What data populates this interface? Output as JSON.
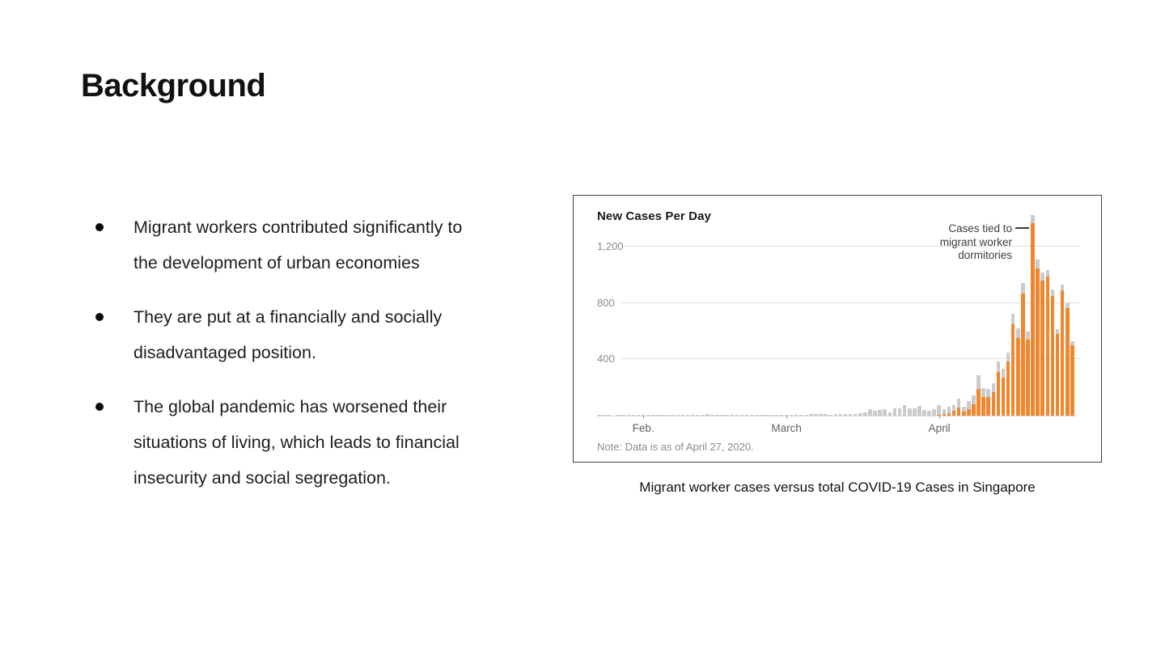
{
  "slide": {
    "title": "Background",
    "bullets": [
      {
        "text": "Migrant workers contributed significantly to the development of urban economies",
        "lines": [
          "Migrant workers contributed significantly to",
          "the development of urban economies"
        ]
      },
      {
        "text": "They are put at a financially and socially disadvantaged position.",
        "lines": [
          "They are put at a financially and socially",
          "disadvantaged position."
        ]
      },
      {
        "text": "The global pandemic has worsened their situations of living, which leads to financial insecurity and social segregation.",
        "lines": [
          "The global pandemic has worsened their",
          "situations of living, which leads to financial",
          "insecurity and social segregation."
        ]
      }
    ],
    "figure_caption": "Migrant worker cases versus total COVID-19 Cases in Singapore"
  },
  "chart_data": {
    "type": "bar",
    "stacked": true,
    "title": "New Cases Per Day",
    "note": "Note: Data is as of April 27, 2020.",
    "annotation": {
      "text": "Cases tied to migrant worker dormitories",
      "lines": [
        "Cases tied to",
        "migrant worker",
        "dormitories"
      ],
      "target_bar_index": 87
    },
    "x_tick_labels": [
      "Feb.",
      "March",
      "April"
    ],
    "x_tick_bar_index": [
      9,
      38,
      69
    ],
    "y_tick_labels": [
      "1,200",
      "800",
      "400"
    ],
    "y_tick_values": [
      1200,
      800,
      400
    ],
    "ylim": [
      0,
      1450
    ],
    "grid": true,
    "colors": {
      "migrant_dormitory": "#f0862d",
      "other": "#cbcbcb"
    },
    "series": [
      {
        "name": "Cases tied to migrant worker dormitories",
        "color": "#f0862d",
        "values": [
          0,
          0,
          0,
          0,
          0,
          0,
          0,
          0,
          0,
          0,
          0,
          0,
          0,
          0,
          0,
          0,
          0,
          0,
          0,
          0,
          0,
          0,
          0,
          0,
          0,
          0,
          0,
          0,
          0,
          0,
          0,
          0,
          0,
          0,
          0,
          0,
          0,
          0,
          0,
          0,
          0,
          0,
          0,
          0,
          0,
          0,
          0,
          0,
          0,
          0,
          0,
          0,
          0,
          0,
          0,
          0,
          0,
          0,
          0,
          0,
          0,
          0,
          0,
          0,
          0,
          0,
          0,
          0,
          0,
          5,
          9,
          20,
          35,
          60,
          30,
          45,
          80,
          190,
          130,
          130,
          165,
          310,
          270,
          385,
          650,
          555,
          870,
          540,
          1369,
          1050,
          960,
          990,
          850,
          580,
          893,
          765,
          500
        ]
      },
      {
        "name": "Other cases",
        "color": "#cbcbcb",
        "values": [
          1,
          2,
          1,
          0,
          1,
          2,
          3,
          3,
          3,
          2,
          1,
          1,
          6,
          4,
          2,
          3,
          7,
          3,
          2,
          2,
          3,
          8,
          9,
          5,
          3,
          2,
          4,
          3,
          1,
          1,
          3,
          1,
          1,
          1,
          2,
          3,
          2,
          4,
          4,
          2,
          2,
          2,
          5,
          13,
          9,
          12,
          10,
          6,
          12,
          9,
          13,
          12,
          14,
          17,
          23,
          47,
          32,
          40,
          47,
          23,
          54,
          49,
          73,
          52,
          49,
          70,
          42,
          35,
          47,
          69,
          40,
          45,
          40,
          60,
          36,
          61,
          62,
          97,
          68,
          61,
          68,
          76,
          64,
          62,
          78,
          68,
          72,
          56,
          57,
          61,
          56,
          47,
          47,
          38,
          38,
          34,
          28
        ]
      }
    ],
    "totals": [
      1,
      2,
      1,
      0,
      1,
      2,
      3,
      3,
      3,
      2,
      1,
      1,
      6,
      4,
      2,
      3,
      7,
      3,
      2,
      2,
      3,
      8,
      9,
      5,
      3,
      2,
      4,
      3,
      1,
      1,
      3,
      1,
      1,
      1,
      2,
      3,
      2,
      4,
      4,
      2,
      2,
      2,
      5,
      13,
      9,
      12,
      10,
      6,
      12,
      9,
      13,
      12,
      14,
      17,
      23,
      47,
      32,
      40,
      47,
      23,
      54,
      49,
      73,
      52,
      49,
      70,
      42,
      35,
      47,
      74,
      49,
      65,
      75,
      120,
      66,
      106,
      142,
      287,
      198,
      191,
      233,
      386,
      334,
      447,
      728,
      623,
      942,
      596,
      1426,
      1111,
      1016,
      1037,
      897,
      618,
      931,
      799,
      528
    ]
  }
}
